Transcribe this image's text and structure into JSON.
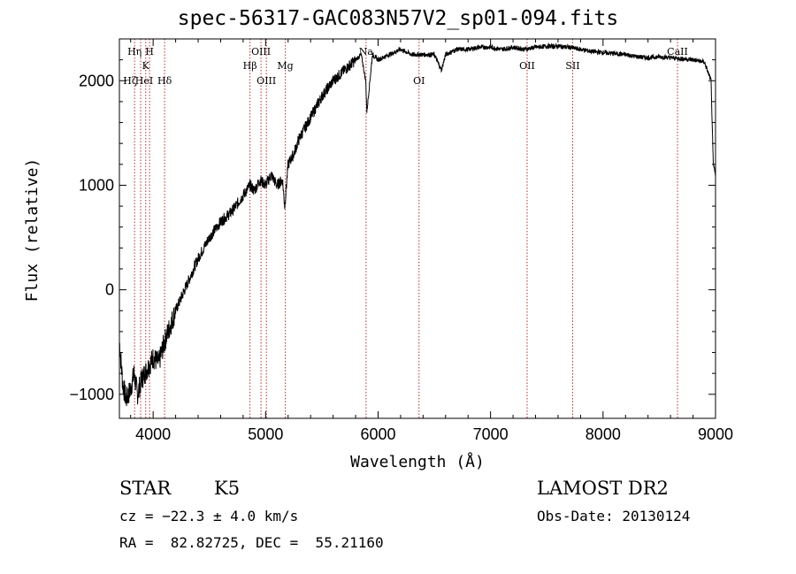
{
  "chart_data": {
    "type": "line",
    "title": "spec-56317-GAC083N57V2_sp01-094.fits",
    "xlabel": "Wavelength (Å)",
    "ylabel": "Flux (relative)",
    "xlim": [
      3700,
      9000
    ],
    "ylim": [
      -1230,
      2400
    ],
    "x_ticks": [
      4000,
      5000,
      6000,
      7000,
      8000,
      9000
    ],
    "y_ticks": [
      -1000,
      0,
      1000,
      2000
    ],
    "series": [
      {
        "x": [
          3700,
          3730,
          3760,
          3800,
          3830,
          3860,
          3900,
          3950,
          4000,
          4050,
          4100,
          4150,
          4200,
          4300,
          4400,
          4500,
          4600,
          4700,
          4800,
          4860,
          4900,
          4950,
          5000,
          5050,
          5100,
          5150,
          5170,
          5200,
          5250,
          5300,
          5400,
          5500,
          5600,
          5700,
          5800,
          5850,
          5890,
          5900,
          5950,
          6000,
          6100,
          6200,
          6300,
          6400,
          6500,
          6563,
          6600,
          6700,
          6800,
          6900,
          7000,
          7100,
          7200,
          7300,
          7400,
          7500,
          7600,
          7700,
          7800,
          7900,
          8000,
          8100,
          8200,
          8300,
          8400,
          8500,
          8600,
          8700,
          8800,
          8900,
          8960,
          8980,
          9000
        ],
        "y": [
          -500,
          -900,
          -1050,
          -950,
          -800,
          -1000,
          -850,
          -750,
          -650,
          -700,
          -500,
          -350,
          -200,
          50,
          300,
          500,
          650,
          750,
          900,
          1000,
          950,
          1050,
          1000,
          1100,
          1000,
          1050,
          800,
          1200,
          1300,
          1450,
          1650,
          1850,
          2000,
          2100,
          2200,
          2250,
          2000,
          1700,
          2250,
          2200,
          2250,
          2300,
          2250,
          2250,
          2250,
          2100,
          2250,
          2300,
          2300,
          2320,
          2320,
          2300,
          2320,
          2300,
          2320,
          2330,
          2330,
          2320,
          2300,
          2280,
          2270,
          2260,
          2250,
          2230,
          2220,
          2230,
          2220,
          2210,
          2200,
          2180,
          2000,
          1200,
          1100
        ]
      }
    ],
    "spectral_lines": [
      {
        "label": "Hη",
        "x": 3835,
        "row": 0
      },
      {
        "label": "H",
        "x": 3968,
        "row": 0
      },
      {
        "label": "K",
        "x": 3934,
        "row": 1
      },
      {
        "label": "Hζ",
        "x": 3889,
        "row": 2
      },
      {
        "label": "HeI",
        "x": 3889,
        "row": 2
      },
      {
        "label": "Hδ",
        "x": 4102,
        "row": 2
      },
      {
        "label": "Hβ",
        "x": 4861,
        "row": 1
      },
      {
        "label": "OIII",
        "x": 4959,
        "row": 0
      },
      {
        "label": "OIII",
        "x": 5007,
        "row": 2
      },
      {
        "label": "Mg",
        "x": 5175,
        "row": 1
      },
      {
        "label": "Na",
        "x": 5893,
        "row": 0
      },
      {
        "label": "OI",
        "x": 6364,
        "row": 2
      },
      {
        "label": "OII",
        "x": 7325,
        "row": 1
      },
      {
        "label": "SII",
        "x": 7730,
        "row": 1
      },
      {
        "label": "CaII",
        "x": 8662,
        "row": 0
      }
    ]
  },
  "info": {
    "object_type": "STAR",
    "subclass": "K5",
    "survey": "LAMOST DR2",
    "redshift_line": "cz = −22.3 ± 4.0 km/s",
    "obs_date_line": "Obs-Date: 20130124",
    "coords_line": "RA =  82.82725, DEC =  55.21160"
  }
}
